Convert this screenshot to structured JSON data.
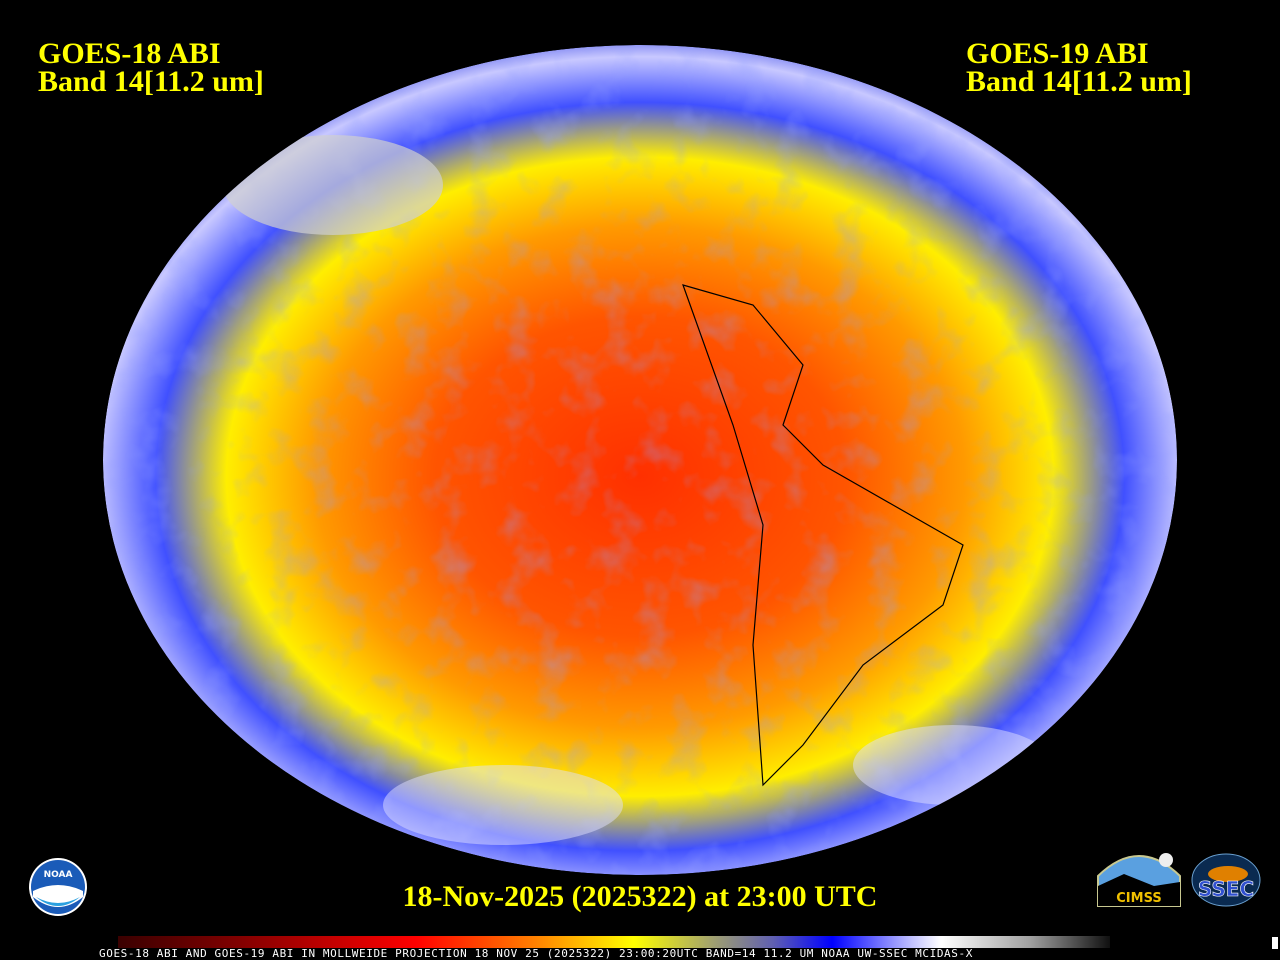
{
  "left_title": {
    "line1": "GOES-18 ABI",
    "line2": "Band 14[11.2 um]"
  },
  "right_title": {
    "line1": "GOES-19 ABI",
    "line2": "Band 14[11.2 um]"
  },
  "date_label": "18-Nov-2025 (2025322) at 23:00 UTC",
  "caption": "GOES-18 ABI AND GOES-19 ABI IN MOLLWEIDE PROJECTION 18 NOV 25 (2025322) 23:00:20UTC BAND=14 11.2 UM NOAA UW-SSEC MCIDAS-X",
  "logos": {
    "noaa": "NOAA",
    "cimss": "CIMSS",
    "ssec": "SSEC"
  },
  "colorbar": [
    "#3a0000",
    "#800000",
    "#ff0000",
    "#ff8000",
    "#ffff00",
    "#a0a070",
    "#6060b0",
    "#0000ff",
    "#c0c0ff",
    "#ffffff",
    "#a0a0a0",
    "#101010"
  ],
  "projection": "Mollweide"
}
